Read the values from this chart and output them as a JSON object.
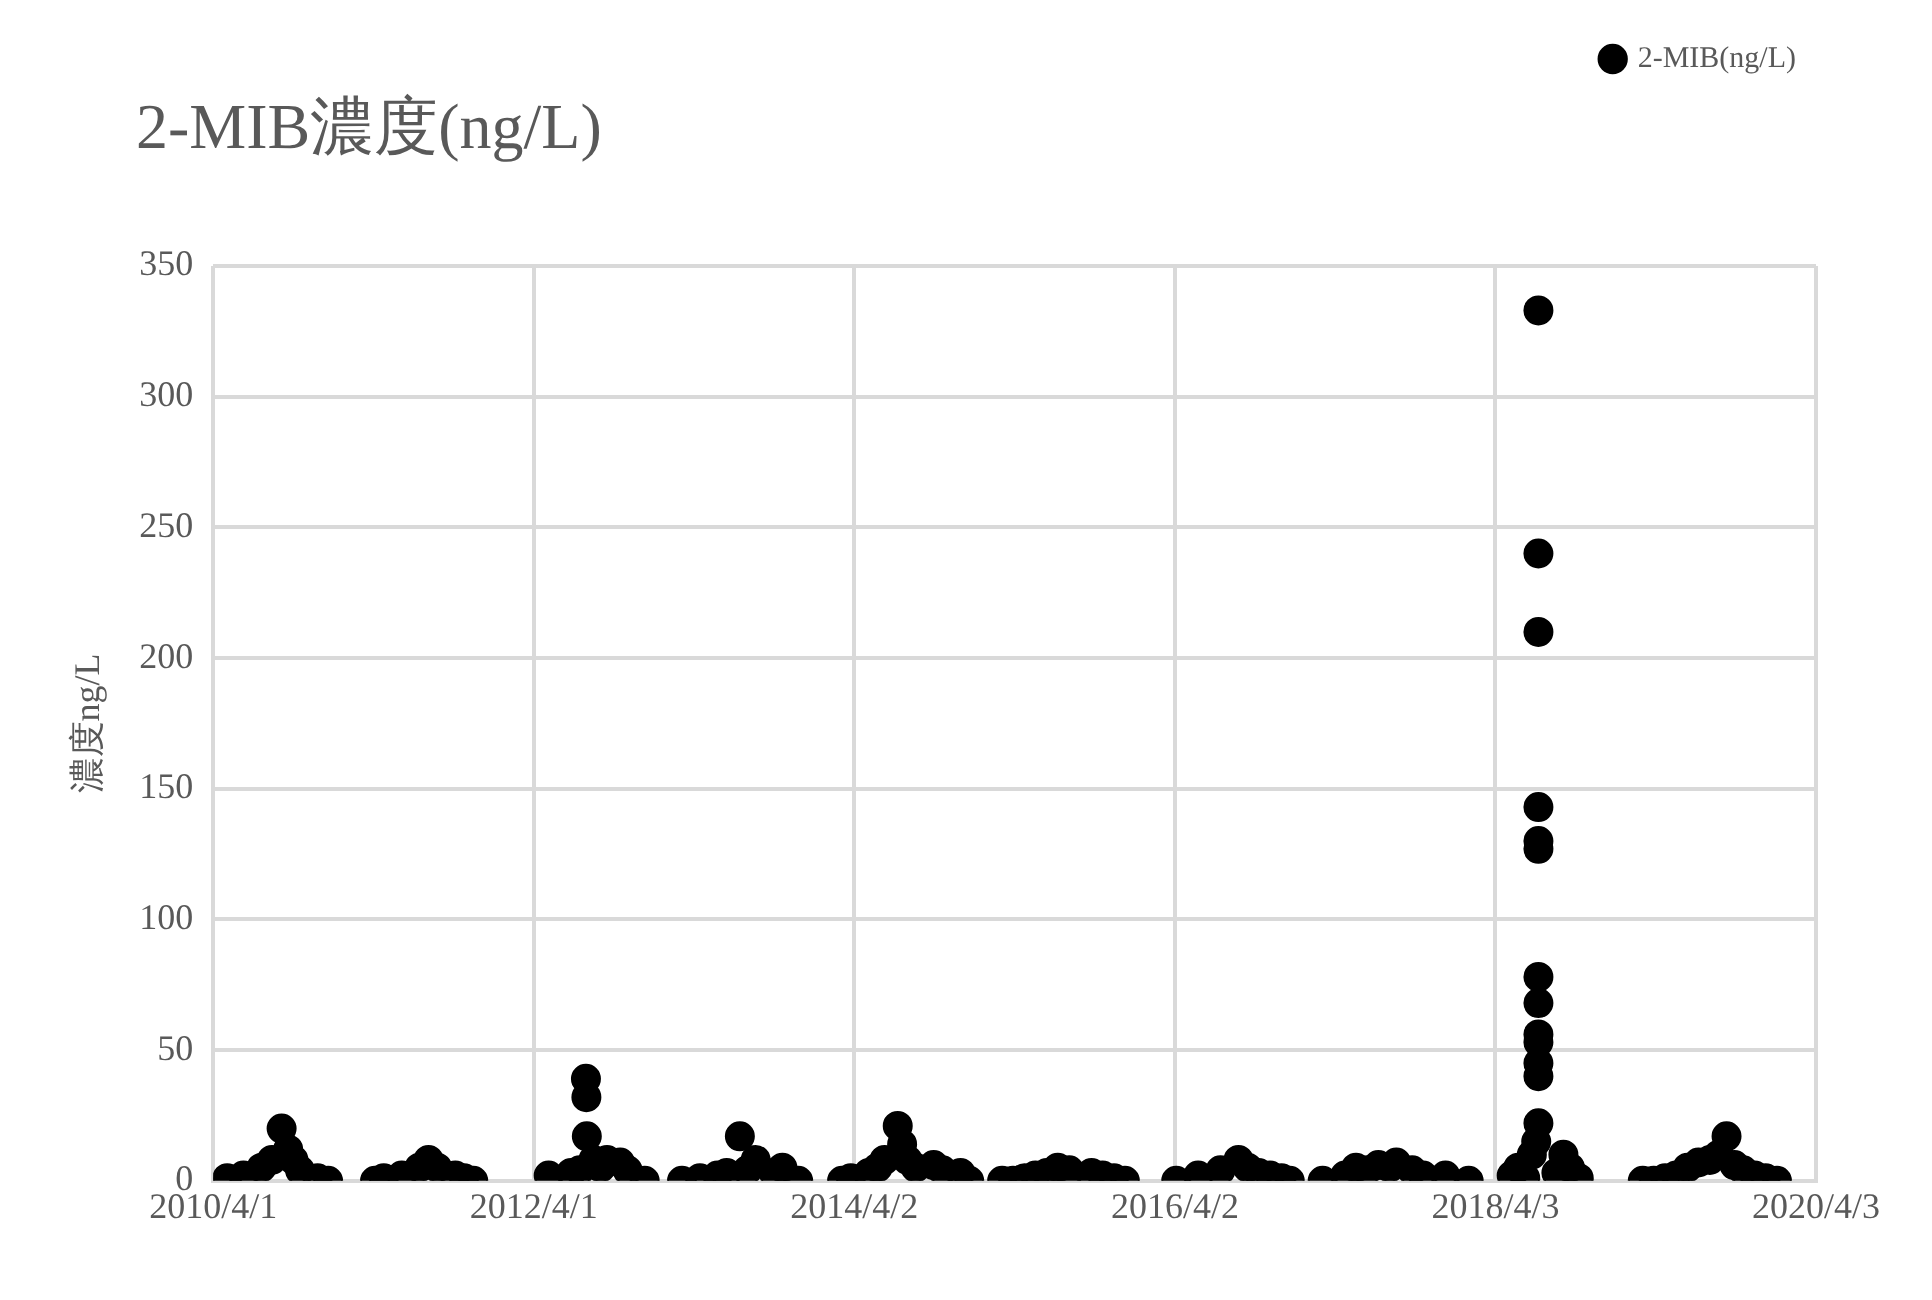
{
  "chart_data": {
    "type": "scatter",
    "title": "2-MIB濃度(ng/L)",
    "ylabel": "濃度ng/L",
    "xlim": [
      "2010-04-01",
      "2020-04-03"
    ],
    "xticks": [
      {
        "value": "2010-04-01",
        "label": "2010/4/1"
      },
      {
        "value": "2012-04-01",
        "label": "2012/4/1"
      },
      {
        "value": "2014-04-02",
        "label": "2014/4/2"
      },
      {
        "value": "2016-04-02",
        "label": "2016/4/2"
      },
      {
        "value": "2018-04-03",
        "label": "2018/4/3"
      },
      {
        "value": "2020-04-03",
        "label": "2020/4/3"
      }
    ],
    "ylim": [
      0,
      350
    ],
    "yticks": [
      0,
      50,
      100,
      150,
      200,
      250,
      300,
      350
    ],
    "grid": true,
    "legend": "top right",
    "marker": "circle",
    "series": [
      {
        "name": "2-MIB(ng/L)",
        "color": "#000000",
        "x": [
          "2010-05-03",
          "2010-06-09",
          "2010-07-20",
          "2010-08-13",
          "2010-09-04",
          "2010-09-19",
          "2010-10-01",
          "2010-10-16",
          "2010-11-25",
          "2010-12-19",
          "2011-04-05",
          "2011-04-25",
          "2011-06-05",
          "2011-07-15",
          "2011-08-05",
          "2011-08-25",
          "2011-10-05",
          "2011-10-25",
          "2011-11-15",
          "2012-05-05",
          "2012-06-25",
          "2012-07-15",
          "2012-07-29",
          "2012-07-30",
          "2012-07-31",
          "2012-08-15",
          "2012-09-01",
          "2012-09-15",
          "2012-10-15",
          "2012-11-01",
          "2012-12-10",
          "2013-03-05",
          "2013-04-15",
          "2013-05-25",
          "2013-06-15",
          "2013-07-15",
          "2013-08-01",
          "2013-08-20",
          "2013-09-30",
          "2013-10-20",
          "2013-11-25",
          "2014-03-05",
          "2014-03-25",
          "2014-05-05",
          "2014-05-25",
          "2014-06-10",
          "2014-07-10",
          "2014-07-20",
          "2014-08-01",
          "2014-08-20",
          "2014-09-30",
          "2014-10-20",
          "2014-11-30",
          "2014-12-20",
          "2015-03-05",
          "2015-03-30",
          "2015-04-25",
          "2015-05-20",
          "2015-06-15",
          "2015-07-10",
          "2015-08-05",
          "2015-09-25",
          "2015-10-20",
          "2015-11-15",
          "2015-12-10",
          "2016-04-05",
          "2016-05-25",
          "2016-07-15",
          "2016-08-25",
          "2016-09-15",
          "2016-10-10",
          "2016-11-05",
          "2016-12-01",
          "2016-12-20",
          "2017-03-05",
          "2017-04-25",
          "2017-05-20",
          "2017-06-15",
          "2017-07-10",
          "2017-08-05",
          "2017-08-20",
          "2017-09-25",
          "2017-10-20",
          "2017-12-10",
          "2018-02-01",
          "2018-05-10",
          "2018-05-25",
          "2018-06-10",
          "2018-06-25",
          "2018-07-05",
          "2018-07-10",
          "2018-07-10",
          "2018-07-10",
          "2018-07-10",
          "2018-07-10",
          "2018-07-10",
          "2018-07-10",
          "2018-07-10",
          "2018-07-10",
          "2018-07-10",
          "2018-07-10",
          "2018-07-10",
          "2018-07-10",
          "2018-08-20",
          "2018-09-05",
          "2018-09-20",
          "2018-10-10",
          "2019-03-05",
          "2019-03-30",
          "2019-04-25",
          "2019-05-20",
          "2019-06-15",
          "2019-07-10",
          "2019-08-05",
          "2019-08-25",
          "2019-09-12",
          "2019-09-30",
          "2019-10-20",
          "2019-11-15",
          "2019-12-10",
          "2020-01-05"
        ],
        "values": [
          1,
          2,
          5,
          8,
          20,
          12,
          8,
          4,
          1,
          0,
          0,
          1,
          2,
          5,
          8,
          5,
          2,
          1,
          0,
          2,
          3,
          4,
          39,
          32,
          17,
          8,
          5,
          8,
          7,
          4,
          0,
          0,
          1,
          2,
          3,
          17,
          4,
          8,
          3,
          5,
          0,
          0,
          1,
          3,
          5,
          8,
          21,
          14,
          8,
          5,
          6,
          4,
          3,
          0,
          0,
          0,
          1,
          2,
          3,
          5,
          4,
          3,
          2,
          1,
          0,
          0,
          2,
          4,
          8,
          5,
          3,
          2,
          1,
          0,
          0,
          2,
          5,
          4,
          6,
          5,
          7,
          4,
          2,
          2,
          0,
          2,
          5,
          1,
          10,
          15,
          333,
          240,
          210,
          143,
          130,
          127,
          78,
          68,
          56,
          53,
          45,
          40,
          22,
          3,
          10,
          5,
          1,
          0,
          0,
          1,
          2,
          5,
          7,
          8,
          10,
          17,
          6,
          4,
          2,
          1,
          0
        ]
      }
    ]
  }
}
